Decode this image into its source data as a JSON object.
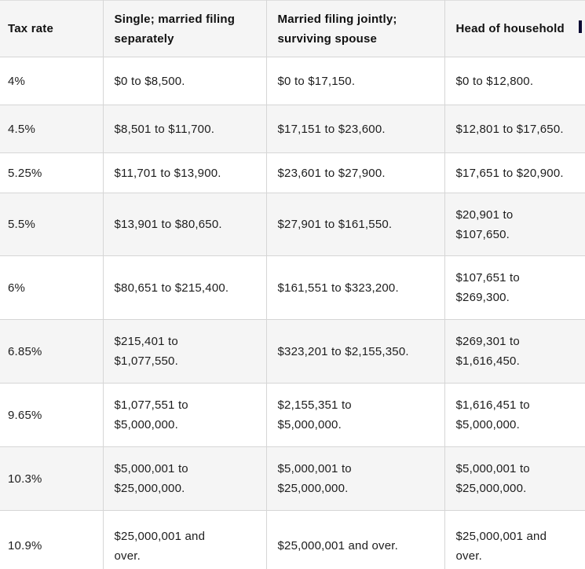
{
  "table": {
    "header": [
      "Tax rate",
      "Single; married filing\nseparately",
      "Married filing jointly;\nsurviving spouse",
      "Head of household"
    ],
    "rows": [
      {
        "cells": [
          "4%",
          "$0 to $8,500.",
          "$0 to $17,150.",
          "$0 to $12,800."
        ]
      },
      {
        "cells": [
          "4.5%",
          "$8,501 to $11,700.",
          "$17,151 to $23,600.",
          "$12,801 to $17,650."
        ]
      },
      {
        "cells": [
          "5.25%",
          "$11,701 to $13,900.",
          "$23,601 to $27,900.",
          "$17,651 to $20,900."
        ]
      },
      {
        "cells": [
          "5.5%",
          "$13,901 to $80,650.",
          "$27,901 to $161,550.",
          "$20,901 to\n$107,650."
        ]
      },
      {
        "cells": [
          "6%",
          "$80,651 to $215,400.",
          "$161,551 to $323,200.",
          "$107,651 to\n$269,300."
        ]
      },
      {
        "cells": [
          "6.85%",
          "$215,401 to\n$1,077,550.",
          "$323,201 to $2,155,350.",
          "$269,301 to\n$1,616,450."
        ]
      },
      {
        "cells": [
          "9.65%",
          "$1,077,551 to\n$5,000,000.",
          "$2,155,351 to\n$5,000,000.",
          "$1,616,451 to\n$5,000,000."
        ]
      },
      {
        "cells": [
          "10.3%",
          "$5,000,001 to\n$25,000,000.",
          "$5,000,001 to\n$25,000,000.",
          "$5,000,001 to\n$25,000,000."
        ]
      },
      {
        "cells": [
          "10.9%",
          "$25,000,001 and\nover.",
          "$25,000,001 and over.",
          "$25,000,001 and\nover."
        ]
      }
    ]
  },
  "colors": {
    "stripe_background": "#f5f5f5",
    "header_background": "#f5f5f5",
    "row_background": "#ffffff",
    "border": "#d6d6d6",
    "text": "#1d1d1d",
    "caret_artifact": "#0b0b33"
  },
  "chart_data": {
    "type": "table",
    "columns": [
      "Tax rate",
      "Single; married filing separately",
      "Married filing jointly; surviving spouse",
      "Head of household"
    ],
    "rows": [
      [
        "4%",
        "$0 to $8,500.",
        "$0 to $17,150.",
        "$0 to $12,800."
      ],
      [
        "4.5%",
        "$8,501 to $11,700.",
        "$17,151 to $23,600.",
        "$12,801 to $17,650."
      ],
      [
        "5.25%",
        "$11,701 to $13,900.",
        "$23,601 to $27,900.",
        "$17,651 to $20,900."
      ],
      [
        "5.5%",
        "$13,901 to $80,650.",
        "$27,901 to $161,550.",
        "$20,901 to $107,650."
      ],
      [
        "6%",
        "$80,651 to $215,400.",
        "$161,551 to $323,200.",
        "$107,651 to $269,300."
      ],
      [
        "6.85%",
        "$215,401 to $1,077,550.",
        "$323,201 to $2,155,350.",
        "$269,301 to $1,616,450."
      ],
      [
        "9.65%",
        "$1,077,551 to $5,000,000.",
        "$2,155,351 to $5,000,000.",
        "$1,616,451 to $5,000,000."
      ],
      [
        "10.3%",
        "$5,000,001 to $25,000,000.",
        "$5,000,001 to $25,000,000.",
        "$5,000,001 to $25,000,000."
      ],
      [
        "10.9%",
        "$25,000,001 and over.",
        "$25,000,001 and over.",
        "$25,000,001 and over."
      ]
    ]
  }
}
